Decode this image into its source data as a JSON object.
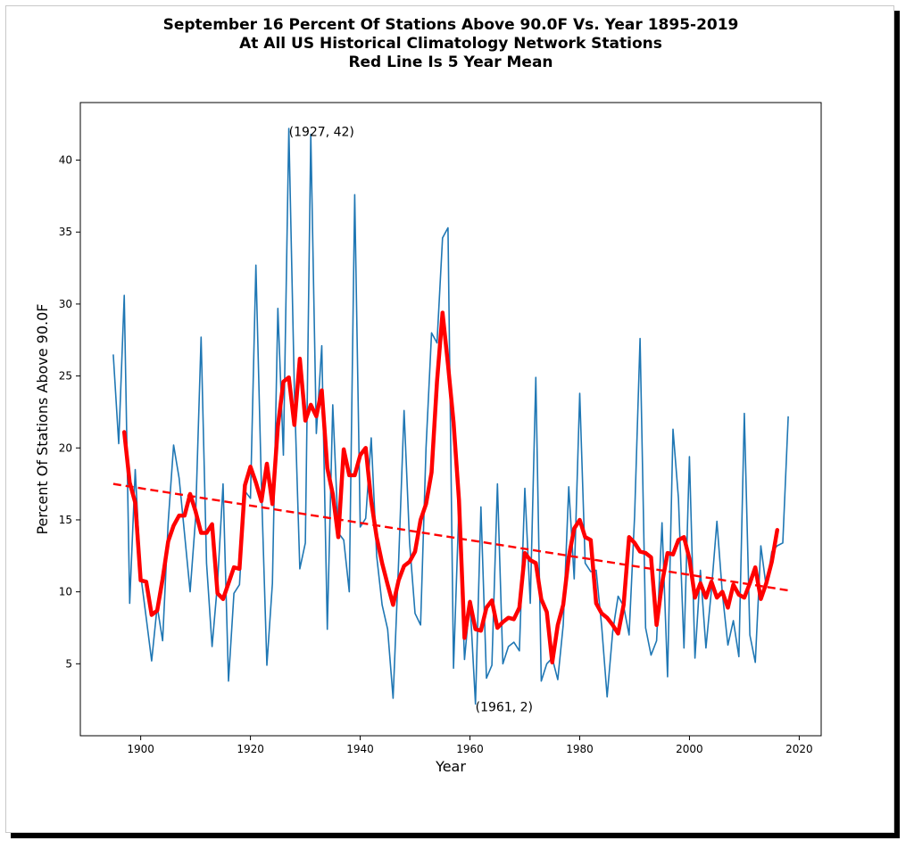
{
  "chart_data": {
    "type": "line",
    "title_lines": [
      "September 16 Percent Of Stations Above 90.0F Vs. Year 1895-2019",
      "At All US Historical Climatology Network Stations",
      "Red Line Is 5 Year Mean"
    ],
    "xlabel": "Year",
    "ylabel": "Percent Of Stations Above 90.0F",
    "xlim": [
      1889,
      2024
    ],
    "ylim": [
      0,
      44
    ],
    "xticks": [
      1900,
      1920,
      1940,
      1960,
      1980,
      2000,
      2020
    ],
    "yticks": [
      5,
      10,
      15,
      20,
      25,
      30,
      35,
      40
    ],
    "grid": false,
    "colors": {
      "annual": "#1f77b4",
      "mean": "#ff0000",
      "trend": "#ff0000"
    },
    "annotations": [
      {
        "text": "(1927, 42)",
        "x": 1927,
        "y": 42
      },
      {
        "text": "(1961, 2)",
        "x": 1961,
        "y": 2
      }
    ],
    "series": [
      {
        "kind": "annual",
        "x": [
          1895,
          1896,
          1897,
          1898,
          1899,
          1900,
          1901,
          1902,
          1903,
          1904,
          1905,
          1906,
          1907,
          1908,
          1909,
          1910,
          1911,
          1912,
          1913,
          1914,
          1915,
          1916,
          1917,
          1918,
          1919,
          1920,
          1921,
          1922,
          1923,
          1924,
          1925,
          1926,
          1927,
          1928,
          1929,
          1930,
          1931,
          1932,
          1933,
          1934,
          1935,
          1936,
          1937,
          1938,
          1939,
          1940,
          1941,
          1942,
          1943,
          1944,
          1945,
          1946,
          1947,
          1948,
          1949,
          1950,
          1951,
          1952,
          1953,
          1954,
          1955,
          1956,
          1957,
          1958,
          1959,
          1960,
          1961,
          1962,
          1963,
          1964,
          1965,
          1966,
          1967,
          1968,
          1969,
          1970,
          1971,
          1972,
          1973,
          1974,
          1975,
          1976,
          1977,
          1978,
          1979,
          1980,
          1981,
          1982,
          1983,
          1984,
          1985,
          1986,
          1987,
          1988,
          1989,
          1990,
          1991,
          1992,
          1993,
          1994,
          1995,
          1996,
          1997,
          1998,
          1999,
          2000,
          2001,
          2002,
          2003,
          2004,
          2005,
          2006,
          2007,
          2008,
          2009,
          2010,
          2011,
          2012,
          2013,
          2014,
          2015,
          2016,
          2017,
          2018
        ],
        "y": [
          26.5,
          20.3,
          30.6,
          9.2,
          18.5,
          11.2,
          8.2,
          5.2,
          9.0,
          6.6,
          14.8,
          20.2,
          17.9,
          14.0,
          10.0,
          15.1,
          27.7,
          12.0,
          6.2,
          10.6,
          17.5,
          3.8,
          9.9,
          10.5,
          17.0,
          16.5,
          32.7,
          17.3,
          4.9,
          10.6,
          29.7,
          19.5,
          42.2,
          24.0,
          11.6,
          13.4,
          41.8,
          21.0,
          27.1,
          7.4,
          23.0,
          14.1,
          13.6,
          10.0,
          37.6,
          14.5,
          15.1,
          20.7,
          12.5,
          9.1,
          7.4,
          2.6,
          12.1,
          22.6,
          13.4,
          8.5,
          7.7,
          20.0,
          28.0,
          27.3,
          34.6,
          35.3,
          4.7,
          16.0,
          5.3,
          9.4,
          2.2,
          15.9,
          4.0,
          4.9,
          17.5,
          5.0,
          6.2,
          6.5,
          5.9,
          17.2,
          9.2,
          24.9,
          3.8,
          5.0,
          5.4,
          3.9,
          7.7,
          17.3,
          10.9,
          23.8,
          12.0,
          11.4,
          11.5,
          7.6,
          2.7,
          7.2,
          9.7,
          9.0,
          7.0,
          15.3,
          27.6,
          7.5,
          5.6,
          6.6,
          14.8,
          4.1,
          21.3,
          16.5,
          6.1,
          19.4,
          5.4,
          11.5,
          6.1,
          10.1,
          14.9,
          9.9,
          6.3,
          8.0,
          5.5,
          22.4,
          7.0,
          5.1,
          13.2,
          10.3,
          12.8,
          13.2,
          13.4,
          22.2
        ]
      },
      {
        "kind": "five_year_mean",
        "x": [
          1897,
          1898,
          1899,
          1900,
          1901,
          1902,
          1903,
          1904,
          1905,
          1906,
          1907,
          1908,
          1909,
          1910,
          1911,
          1912,
          1913,
          1914,
          1915,
          1916,
          1917,
          1918,
          1919,
          1920,
          1921,
          1922,
          1923,
          1924,
          1925,
          1926,
          1927,
          1928,
          1929,
          1930,
          1931,
          1932,
          1933,
          1934,
          1935,
          1936,
          1937,
          1938,
          1939,
          1940,
          1941,
          1942,
          1943,
          1944,
          1945,
          1946,
          1947,
          1948,
          1949,
          1950,
          1951,
          1952,
          1953,
          1954,
          1955,
          1956,
          1957,
          1958,
          1959,
          1960,
          1961,
          1962,
          1963,
          1964,
          1965,
          1966,
          1967,
          1968,
          1969,
          1970,
          1971,
          1972,
          1973,
          1974,
          1975,
          1976,
          1977,
          1978,
          1979,
          1980,
          1981,
          1982,
          1983,
          1984,
          1985,
          1986,
          1987,
          1988,
          1989,
          1990,
          1991,
          1992,
          1993,
          1994,
          1995,
          1996,
          1997,
          1998,
          1999,
          2000,
          2001,
          2002,
          2003,
          2004,
          2005,
          2006,
          2007,
          2008,
          2009,
          2010,
          2011,
          2012,
          2013,
          2014,
          2015,
          2016
        ],
        "y": [
          21.1,
          17.6,
          16.2,
          10.8,
          10.7,
          8.4,
          8.7,
          10.9,
          13.5,
          14.6,
          15.3,
          15.3,
          16.8,
          15.6,
          14.1,
          14.1,
          14.7,
          9.9,
          9.5,
          10.6,
          11.7,
          11.6,
          17.4,
          18.7,
          17.6,
          16.3,
          18.9,
          16.1,
          21.5,
          24.6,
          24.9,
          21.6,
          26.2,
          21.9,
          23.0,
          22.2,
          24.0,
          18.6,
          16.8,
          13.8,
          19.9,
          18.1,
          18.1,
          19.5,
          20.0,
          16.3,
          13.8,
          12.0,
          10.5,
          9.1,
          10.8,
          11.8,
          12.1,
          12.8,
          15.0,
          16.1,
          18.3,
          24.6,
          29.4,
          25.8,
          21.8,
          16.4,
          6.8,
          9.3,
          7.4,
          7.3,
          8.9,
          9.4,
          7.5,
          7.9,
          8.2,
          8.1,
          8.9,
          12.7,
          12.2,
          12.0,
          9.5,
          8.6,
          5.1,
          7.7,
          9.1,
          12.4,
          14.4,
          15.0,
          13.8,
          13.6,
          9.2,
          8.5,
          8.2,
          7.7,
          7.1,
          9.1,
          13.8,
          13.4,
          12.8,
          12.7,
          12.4,
          7.7,
          10.6,
          12.7,
          12.6,
          13.6,
          13.8,
          12.3,
          9.6,
          10.6,
          9.6,
          10.7,
          9.6,
          10.0,
          8.9,
          10.5,
          9.8,
          9.6,
          10.6,
          11.7,
          9.5,
          10.6,
          12.1,
          14.3
        ]
      },
      {
        "kind": "trend",
        "x": [
          1895,
          2018
        ],
        "y": [
          17.5,
          10.1
        ]
      }
    ]
  }
}
